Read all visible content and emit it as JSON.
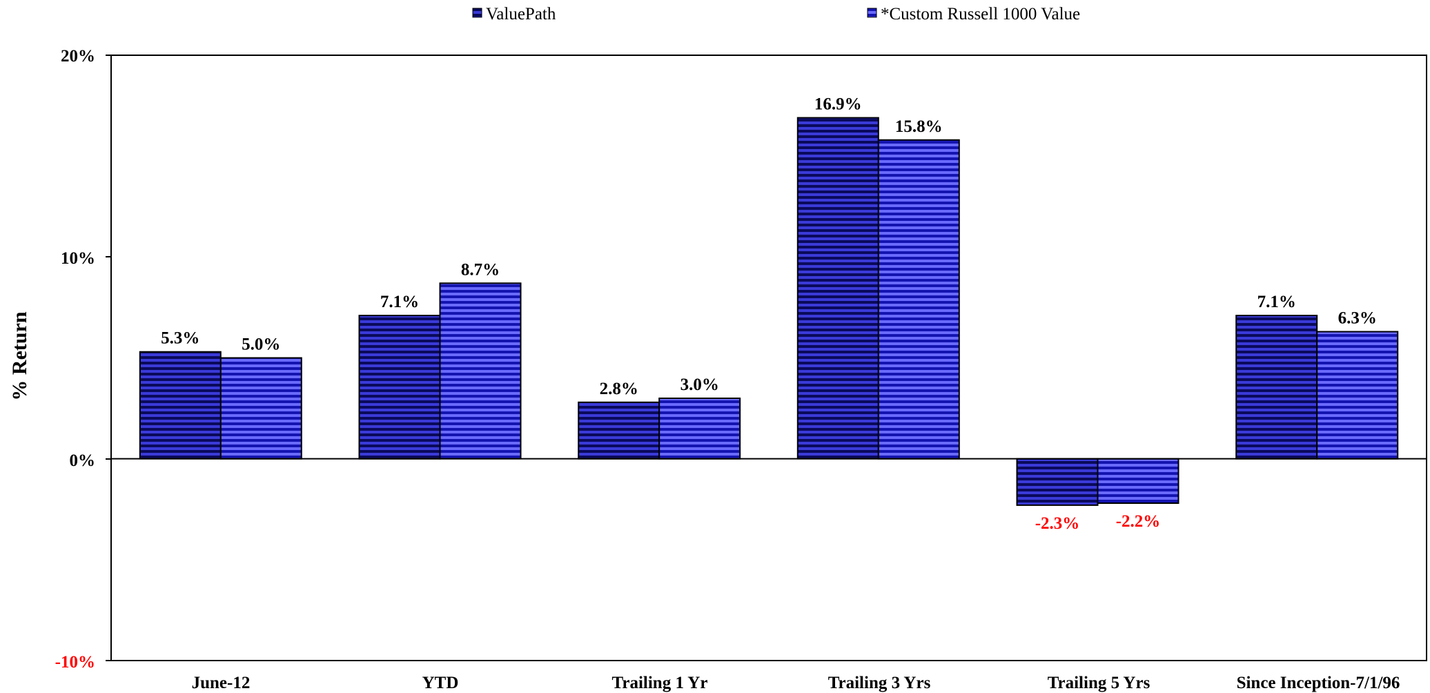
{
  "chart_data": {
    "type": "bar",
    "categories": [
      "June-12",
      "YTD",
      "Trailing 1 Yr",
      "Trailing 3 Yrs",
      "Trailing 5 Yrs",
      "Since Inception-7/1/96"
    ],
    "series": [
      {
        "name": "ValuePath",
        "values": [
          5.3,
          7.1,
          2.8,
          16.9,
          -2.3,
          7.1
        ],
        "labels": [
          "5.3%",
          "7.1%",
          "2.8%",
          "16.9%",
          "-2.3%",
          "7.1%"
        ]
      },
      {
        "name": "*Custom Russell 1000 Value",
        "values": [
          5.0,
          8.7,
          3.0,
          15.8,
          -2.2,
          6.3
        ],
        "labels": [
          "5.0%",
          "8.7%",
          "3.0%",
          "15.8%",
          "-2.2%",
          "6.3%"
        ]
      }
    ],
    "ylabel": "% Return",
    "ylim": [
      -10,
      20
    ],
    "yticks": [
      20,
      10,
      0,
      -10
    ],
    "ytick_labels": [
      "20%",
      "10%",
      "0%",
      "-10%"
    ],
    "legend_position": "top",
    "colors": {
      "series_1_fill": "#0a0a5c",
      "series_1_stripe": "#3a3ad8",
      "series_2_fill": "#1414b0",
      "series_2_stripe": "#6a6aff",
      "negative_text": "#ff0000",
      "text": "#000000"
    }
  }
}
